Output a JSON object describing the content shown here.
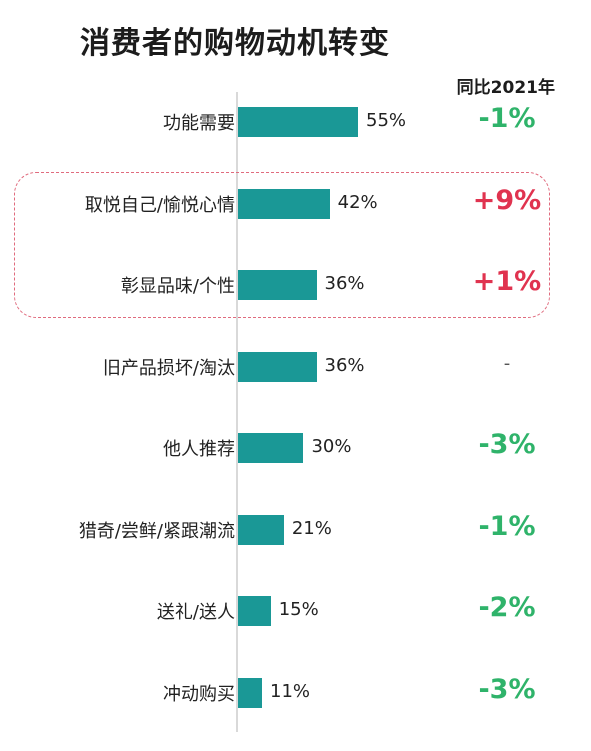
{
  "chart_data": {
    "type": "bar",
    "title": "消费者的购物动机转变",
    "change_header": "同比2021年",
    "categories": [
      "功能需要",
      "取悦自己/愉悦心情",
      "彰显品味/个性",
      "旧产品损坏/淘汰",
      "他人推荐",
      "猎奇/尝鲜/紧跟潮流",
      "送礼/送人",
      "冲动购买"
    ],
    "values": [
      55,
      42,
      36,
      36,
      30,
      21,
      15,
      11
    ],
    "value_labels": [
      "55%",
      "42%",
      "36%",
      "36%",
      "30%",
      "21%",
      "15%",
      "11%"
    ],
    "changes": [
      "-1%",
      "+9%",
      "+1%",
      "-",
      "-3%",
      "-1%",
      "-2%",
      "-3%"
    ],
    "highlighted": [
      "取悦自己/愉悦心情",
      "彰显品味/个性"
    ],
    "xlim": [
      0,
      55
    ]
  },
  "colors": {
    "bar": "#1a9896",
    "positive": "#e0334f",
    "negative": "#2fb36a",
    "neutral": "#555555",
    "highlight_border": "#e06b7e"
  }
}
